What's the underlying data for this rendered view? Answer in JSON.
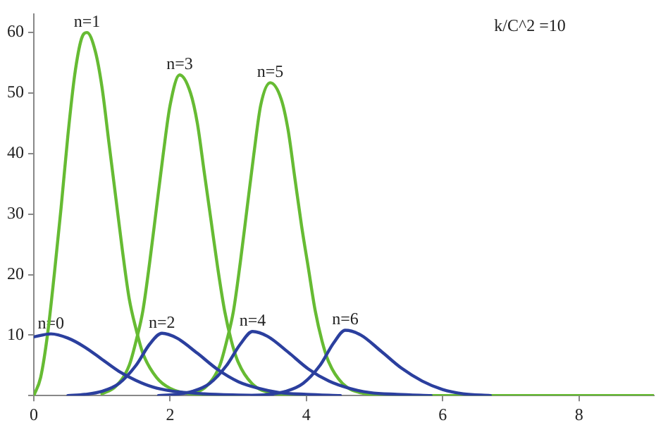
{
  "chart_data": {
    "type": "line",
    "xlim": [
      0,
      9.1
    ],
    "ylim": [
      0,
      63
    ],
    "xticks": [
      0,
      2,
      4,
      6,
      8
    ],
    "yticks": [
      {
        "value": 0,
        "label": null
      },
      10,
      20,
      30,
      40,
      50,
      60
    ],
    "grid": false,
    "legend": false,
    "marker": "none",
    "line_style": "solid",
    "series": [
      {
        "name": "n=0",
        "color": "#2b3f9e",
        "x": [
          0,
          0.25,
          0.5,
          0.75,
          1.0,
          1.25,
          1.5,
          1.75,
          2.0,
          2.5,
          3.0,
          3.5
        ],
        "values": [
          9.7,
          10.2,
          9.5,
          8,
          6,
          4,
          2.5,
          1.4,
          0.8,
          0.3,
          0.1,
          0
        ]
      },
      {
        "name": "n=2",
        "color": "#2b3f9e",
        "x": [
          0.5,
          0.75,
          1.0,
          1.25,
          1.5,
          1.7,
          1.88,
          2.1,
          2.4,
          2.7,
          3.0,
          3.3,
          3.6,
          4.0,
          4.5
        ],
        "values": [
          0,
          0.2,
          0.7,
          2,
          5,
          8.5,
          10.3,
          9.5,
          7,
          4.3,
          2.3,
          1.2,
          0.5,
          0.2,
          0
        ]
      },
      {
        "name": "n=4",
        "color": "#2b3f9e",
        "x": [
          1.83,
          2.08,
          2.33,
          2.58,
          2.83,
          3.03,
          3.21,
          3.43,
          3.73,
          4.03,
          4.33,
          4.63,
          4.93,
          5.33,
          5.83
        ],
        "values": [
          0,
          0.2,
          0.7,
          2,
          5,
          8.5,
          10.6,
          9.8,
          7.2,
          4.4,
          2.4,
          1.2,
          0.5,
          0.2,
          0
        ]
      },
      {
        "name": "n=6",
        "color": "#2b3f9e",
        "x": [
          3.2,
          3.45,
          3.7,
          3.95,
          4.2,
          4.4,
          4.57,
          4.8,
          5.1,
          5.4,
          5.7,
          6.0,
          6.3,
          6.7
        ],
        "values": [
          0,
          0.2,
          0.7,
          2,
          5,
          8.7,
          10.8,
          10,
          7.3,
          4.5,
          2.4,
          1.0,
          0.3,
          0
        ]
      },
      {
        "name": "n=1",
        "color": "#66bb33",
        "x": [
          0,
          0.1,
          0.2,
          0.3,
          0.4,
          0.5,
          0.6,
          0.7,
          0.78,
          0.9,
          1.0,
          1.1,
          1.2,
          1.3,
          1.4,
          1.5,
          1.6,
          1.8,
          2.0,
          2.4,
          3.0
        ],
        "values": [
          0,
          3,
          10,
          20,
          31,
          43,
          53,
          59,
          60,
          57,
          51,
          42,
          33,
          24,
          16,
          11,
          7,
          3,
          1.2,
          0.2,
          0
        ]
      },
      {
        "name": "n=3",
        "color": "#66bb33",
        "x": [
          1.0,
          1.2,
          1.4,
          1.5,
          1.6,
          1.7,
          1.8,
          1.9,
          2.0,
          2.14,
          2.3,
          2.4,
          2.5,
          2.6,
          2.7,
          2.8,
          2.9,
          3.0,
          3.2,
          3.5,
          4.0
        ],
        "values": [
          0.3,
          1.5,
          5,
          9,
          14,
          22,
          31,
          40,
          48,
          53,
          50,
          45,
          37,
          29,
          21,
          14,
          9,
          5.5,
          2,
          0.4,
          0
        ]
      },
      {
        "name": "n=5",
        "color": "#66bb33",
        "x": [
          2.33,
          2.53,
          2.73,
          2.83,
          2.93,
          3.03,
          3.13,
          3.23,
          3.33,
          3.47,
          3.63,
          3.73,
          3.83,
          3.93,
          4.03,
          4.13,
          4.23,
          4.33,
          4.53,
          4.83,
          5.33,
          9.1
        ],
        "values": [
          0.3,
          1.5,
          5,
          9,
          14,
          22,
          31,
          40,
          48,
          51.7,
          49,
          44,
          36,
          28,
          21,
          14,
          9,
          5.5,
          2,
          0.4,
          0,
          0
        ]
      }
    ],
    "annotations": [
      "k/C^2 =10"
    ]
  }
}
